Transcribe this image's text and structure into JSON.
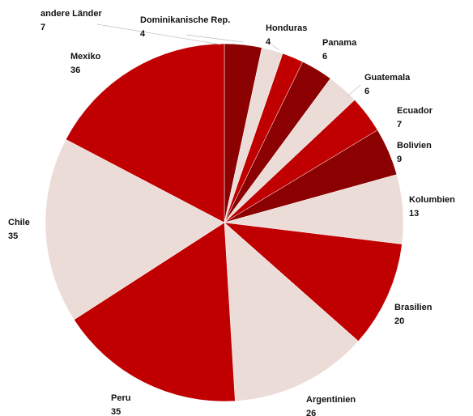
{
  "chart_data": {
    "type": "pie",
    "categories": [
      "andere Länder",
      "Dominikanische Rep.",
      "Honduras",
      "Panama",
      "Guatemala",
      "Ecuador",
      "Bolivien",
      "Kolumbien",
      "Brasilien",
      "Argentinien",
      "Peru",
      "Chile",
      "Mexiko"
    ],
    "values": [
      7,
      4,
      4,
      6,
      6,
      7,
      9,
      13,
      20,
      26,
      35,
      35,
      36
    ],
    "colors": [
      "#8b0000",
      "#ecdcd8",
      "#c00000",
      "#8b0000",
      "#ecdcd8",
      "#c00000",
      "#8b0000",
      "#ecdcd8",
      "#c00000",
      "#ecdcd8",
      "#c00000",
      "#ecdcd8",
      "#c00000"
    ]
  }
}
